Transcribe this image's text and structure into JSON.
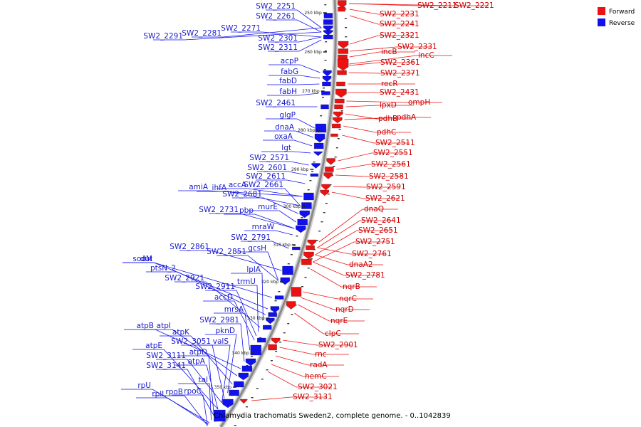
{
  "title": "Chlamydia trachomatis Sweden2, complete genome. - 0..1042839",
  "legend": [
    {
      "label": "Forward",
      "color": "#ee1111"
    },
    {
      "label": "Reverse",
      "color": "#1111ee"
    }
  ],
  "colors": {
    "forward": "#ee1111",
    "reverse": "#1111ee",
    "backbone": "#888888"
  },
  "ticks": [
    "250 kbp",
    "260 kbp",
    "270 kbp",
    "280 kbp",
    "290 kbp",
    "300 kbp",
    "310 kbp",
    "320 kbp",
    "330 kbp",
    "340 kbp",
    "350 kbp"
  ],
  "forward_labels": [
    "SW2_2211",
    "SW2_2221",
    "SW2_2231",
    "SW2_2241",
    "SW2_2321",
    "SW2_2331",
    "incB",
    "incC",
    "SW2_2361",
    "SW2_2371",
    "recR",
    "SW2_2431",
    "ompH",
    "lpxD",
    "pdhB",
    "pdhA",
    "pdhC",
    "SW2_2511",
    "SW2_2551",
    "SW2_2561",
    "SW2_2581",
    "SW2_2591",
    "SW2_2621",
    "dnaQ",
    "SW2_2641",
    "SW2_2651",
    "SW2_2751",
    "SW2_2761",
    "dnaA2",
    "SW2_2781",
    "nqrB",
    "nqrC",
    "nqrD",
    "nqrE",
    "clpC",
    "SW2_2901",
    "rnc",
    "radA",
    "hemC",
    "SW2_3021",
    "SW2_3131"
  ],
  "reverse_labels": [
    "SW2_2251",
    "SW2_2261",
    "SW2_2271",
    "SW2_2281",
    "SW2_2291",
    "SW2_2301",
    "SW2_2311",
    "acpP",
    "fabG",
    "fabD",
    "fabH",
    "SW2_2461",
    "glgP",
    "dnaA",
    "oxaA",
    "lgt",
    "SW2_2571",
    "SW2_2601",
    "SW2_2611",
    "accA",
    "SW2_2661",
    "amiA",
    "ihfA",
    "SW2_2681",
    "murE",
    "SW2_2731",
    "pbp",
    "mraW",
    "SW2_2791",
    "SW2_2861",
    "gcsH",
    "SW2_2851",
    "sodM",
    "dut",
    "ptsN_2",
    "lplA",
    "SW2_2921",
    "trmU",
    "SW2_2911",
    "accD",
    "mrsA",
    "SW2_2981",
    "atpB",
    "atpI",
    "atpK",
    "pknD",
    "SW2_3051",
    "valS",
    "atpE",
    "atpD",
    "SW2_3111",
    "atpA",
    "SW2_3141",
    "tal",
    "rpU",
    "rplL",
    "rpoB",
    "rpoC"
  ]
}
